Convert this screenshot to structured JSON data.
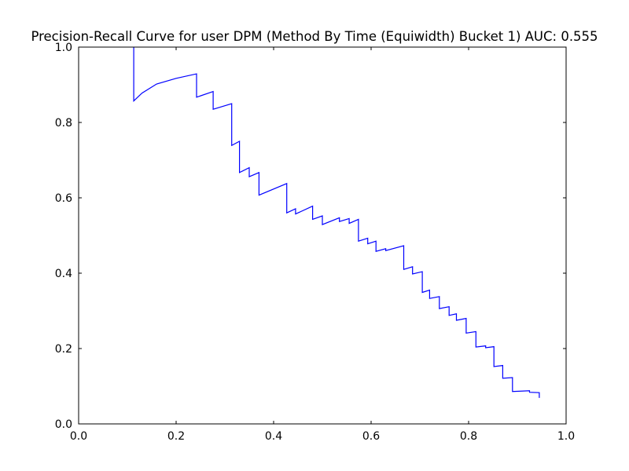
{
  "chart_data": {
    "type": "line",
    "title": "Precision-Recall Curve for user DPM (Method By Time (Equiwidth) Bucket 1) AUC: 0.555",
    "xlabel": "",
    "ylabel": "",
    "xlim": [
      0.0,
      1.0
    ],
    "ylim": [
      0.0,
      1.0
    ],
    "xticks": [
      "0.0",
      "0.2",
      "0.4",
      "0.6",
      "0.8",
      "1.0"
    ],
    "yticks": [
      "0.0",
      "0.2",
      "0.4",
      "0.6",
      "0.8",
      "1.0"
    ],
    "grid": false,
    "line_color": "#0000ff",
    "series": [
      {
        "x": [
          0.113,
          0.113,
          0.13,
          0.16,
          0.2,
          0.242,
          0.242,
          0.276,
          0.276,
          0.314,
          0.314,
          0.33,
          0.33,
          0.35,
          0.35,
          0.37,
          0.37,
          0.427,
          0.427,
          0.445,
          0.445,
          0.48,
          0.48,
          0.5,
          0.5,
          0.535,
          0.535,
          0.555,
          0.555,
          0.574,
          0.574,
          0.593,
          0.593,
          0.61,
          0.61,
          0.63,
          0.63,
          0.667,
          0.667,
          0.685,
          0.685,
          0.705,
          0.705,
          0.72,
          0.72,
          0.74,
          0.74,
          0.76,
          0.76,
          0.775,
          0.775,
          0.795,
          0.795,
          0.815,
          0.815,
          0.835,
          0.835,
          0.852,
          0.852,
          0.87,
          0.87,
          0.89,
          0.89,
          0.925,
          0.925,
          0.945,
          0.945
        ],
        "y": [
          1.0,
          0.857,
          0.878,
          0.902,
          0.917,
          0.929,
          0.867,
          0.882,
          0.835,
          0.85,
          0.739,
          0.75,
          0.667,
          0.68,
          0.656,
          0.667,
          0.607,
          0.638,
          0.56,
          0.571,
          0.557,
          0.578,
          0.543,
          0.552,
          0.529,
          0.547,
          0.537,
          0.545,
          0.532,
          0.543,
          0.485,
          0.493,
          0.478,
          0.485,
          0.458,
          0.465,
          0.46,
          0.473,
          0.41,
          0.417,
          0.398,
          0.404,
          0.349,
          0.355,
          0.333,
          0.338,
          0.306,
          0.311,
          0.288,
          0.292,
          0.275,
          0.28,
          0.241,
          0.245,
          0.204,
          0.207,
          0.202,
          0.205,
          0.152,
          0.155,
          0.121,
          0.123,
          0.086,
          0.088,
          0.084,
          0.083,
          0.069
        ]
      }
    ]
  }
}
